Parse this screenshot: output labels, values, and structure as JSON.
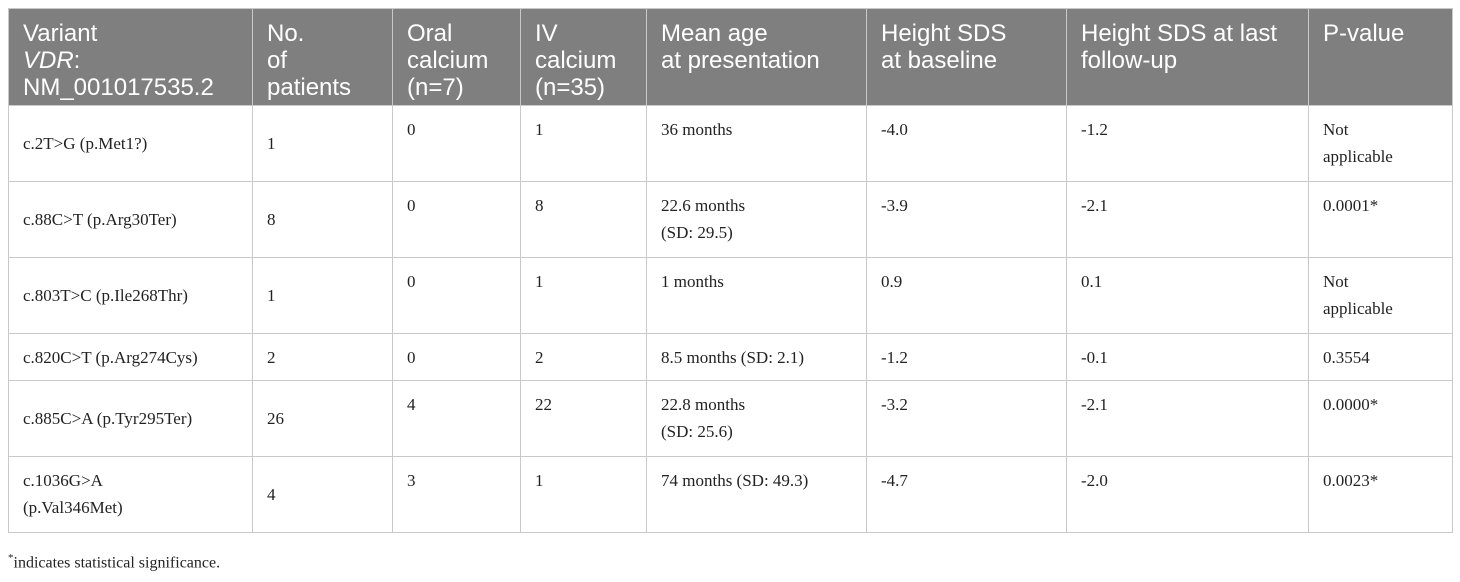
{
  "table": {
    "headers": [
      {
        "lines": [
          "Variant",
          "VDR: NM_001017535.2"
        ],
        "gene": "VDR",
        "rest": ": NM_001017535.2",
        "first": "Variant"
      },
      {
        "text": "No.\nof\npatients"
      },
      {
        "text": "Oral\ncalcium\n(n=7)"
      },
      {
        "text": "IV\ncalcium\n(n=35)"
      },
      {
        "text": "Mean age\nat presentation"
      },
      {
        "text": "Height SDS\nat baseline"
      },
      {
        "text": "Height SDS at last\nfollow-up"
      },
      {
        "text": "P-value"
      }
    ],
    "rows": [
      {
        "variant": "c.2T>G (p.Met1?)",
        "patients": "1",
        "oral": "0",
        "iv": "1",
        "age": "36 months",
        "baseline": "-4.0",
        "last": "-1.2",
        "p": "Not\napplicable"
      },
      {
        "variant": "c.88C>T (p.Arg30Ter)",
        "patients": "8",
        "oral": "0",
        "iv": "8",
        "age": "22.6 months\n(SD: 29.5)",
        "baseline": "-3.9",
        "last": "-2.1",
        "p": "0.0001*"
      },
      {
        "variant": "c.803T>C (p.Ile268Thr)",
        "patients": "1",
        "oral": "0",
        "iv": "1",
        "age": "1 months",
        "baseline": "0.9",
        "last": "0.1",
        "p": "Not\napplicable"
      },
      {
        "variant": "c.820C>T (p.Arg274Cys)",
        "patients": "2",
        "oral": "0",
        "iv": "2",
        "age": "8.5 months (SD: 2.1)",
        "baseline": "-1.2",
        "last": "-0.1",
        "p": "0.3554"
      },
      {
        "variant": "c.885C>A (p.Tyr295Ter)",
        "patients": "26",
        "oral": "4",
        "iv": "22",
        "age": "22.8 months\n(SD: 25.6)",
        "baseline": "-3.2",
        "last": "-2.1",
        "p": "0.0000*"
      },
      {
        "variant": "c.1036G>A\n(p.Val346Met)",
        "patients": "4",
        "oral": "3",
        "iv": "1",
        "age": "74 months (SD: 49.3)",
        "baseline": "-4.7",
        "last": "-2.0",
        "p": "0.0023*"
      }
    ]
  },
  "footnote": {
    "mark": "*",
    "text": "indicates statistical significance."
  }
}
